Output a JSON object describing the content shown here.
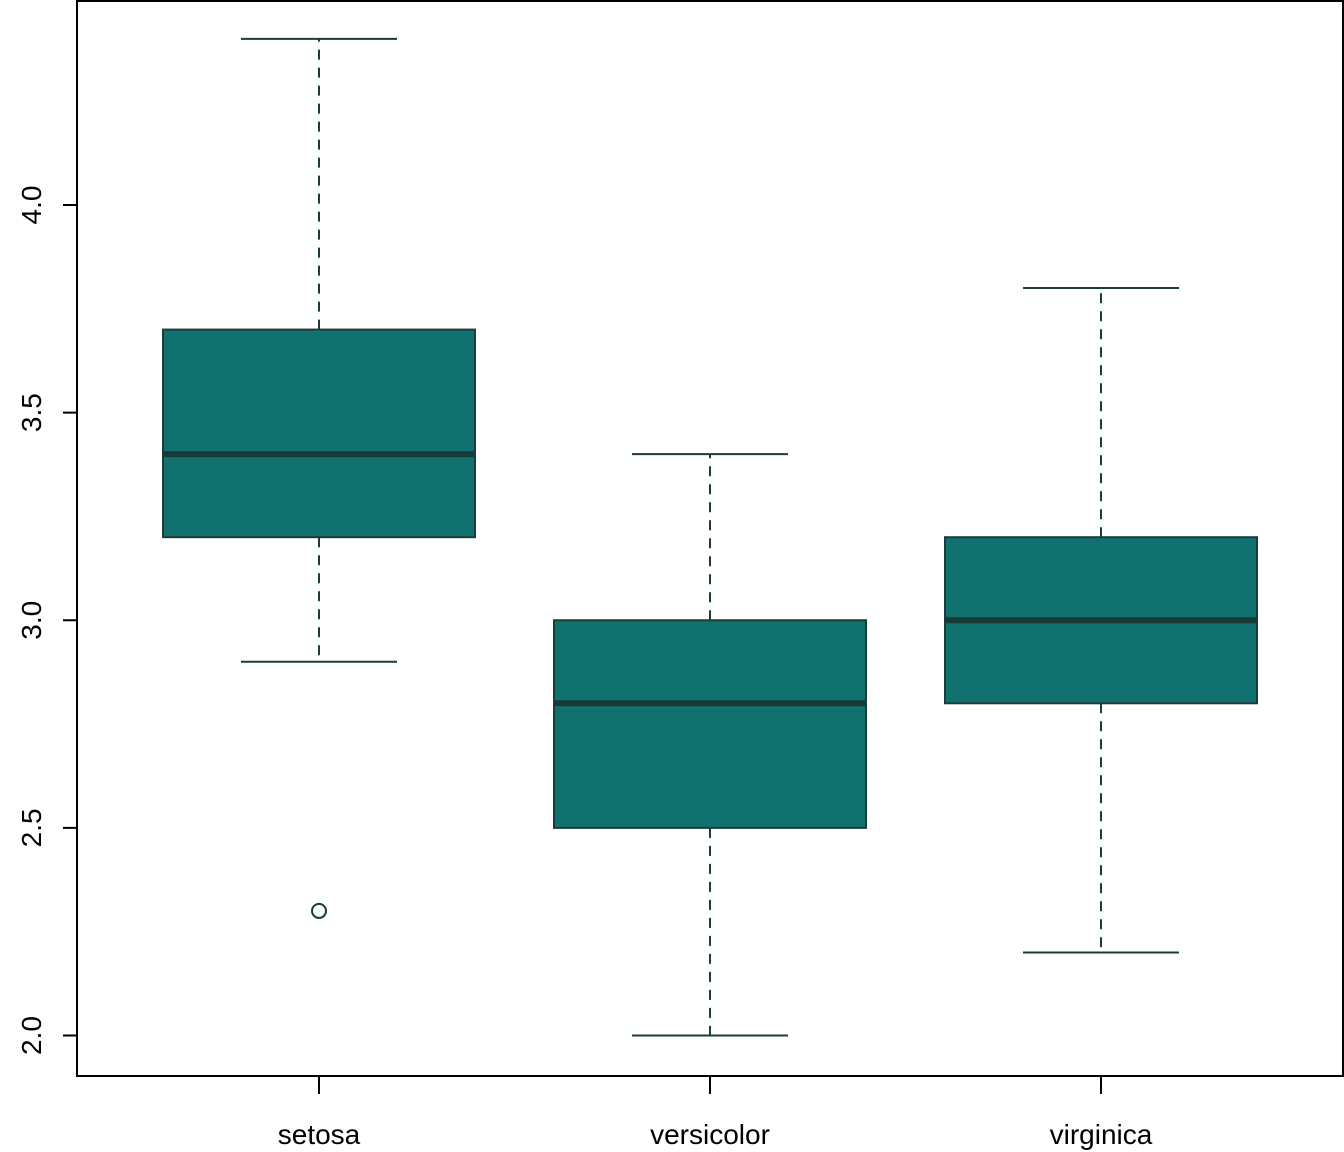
{
  "chart_data": {
    "type": "boxplot",
    "title": "",
    "xlabel": "",
    "ylabel": "",
    "categories": [
      "setosa",
      "versicolor",
      "virginica"
    ],
    "boxes": [
      {
        "category": "setosa",
        "whisker_low": 2.9,
        "q1": 3.2,
        "median": 3.4,
        "q3": 3.7,
        "whisker_high": 4.4,
        "outliers": [
          2.3
        ]
      },
      {
        "category": "versicolor",
        "whisker_low": 2.0,
        "q1": 2.5,
        "median": 2.8,
        "q3": 3.0,
        "whisker_high": 3.4,
        "outliers": []
      },
      {
        "category": "virginica",
        "whisker_low": 2.2,
        "q1": 2.8,
        "median": 3.0,
        "q3": 3.2,
        "whisker_high": 3.8,
        "outliers": []
      }
    ],
    "y_ticks": [
      "2.0",
      "2.5",
      "3.0",
      "3.5",
      "4.0"
    ],
    "ylim": [
      1.9,
      4.49
    ],
    "grid": false,
    "colors": {
      "box_fill": "#11716f",
      "stroke": "#1a3c3a",
      "median": "#153a38"
    }
  }
}
